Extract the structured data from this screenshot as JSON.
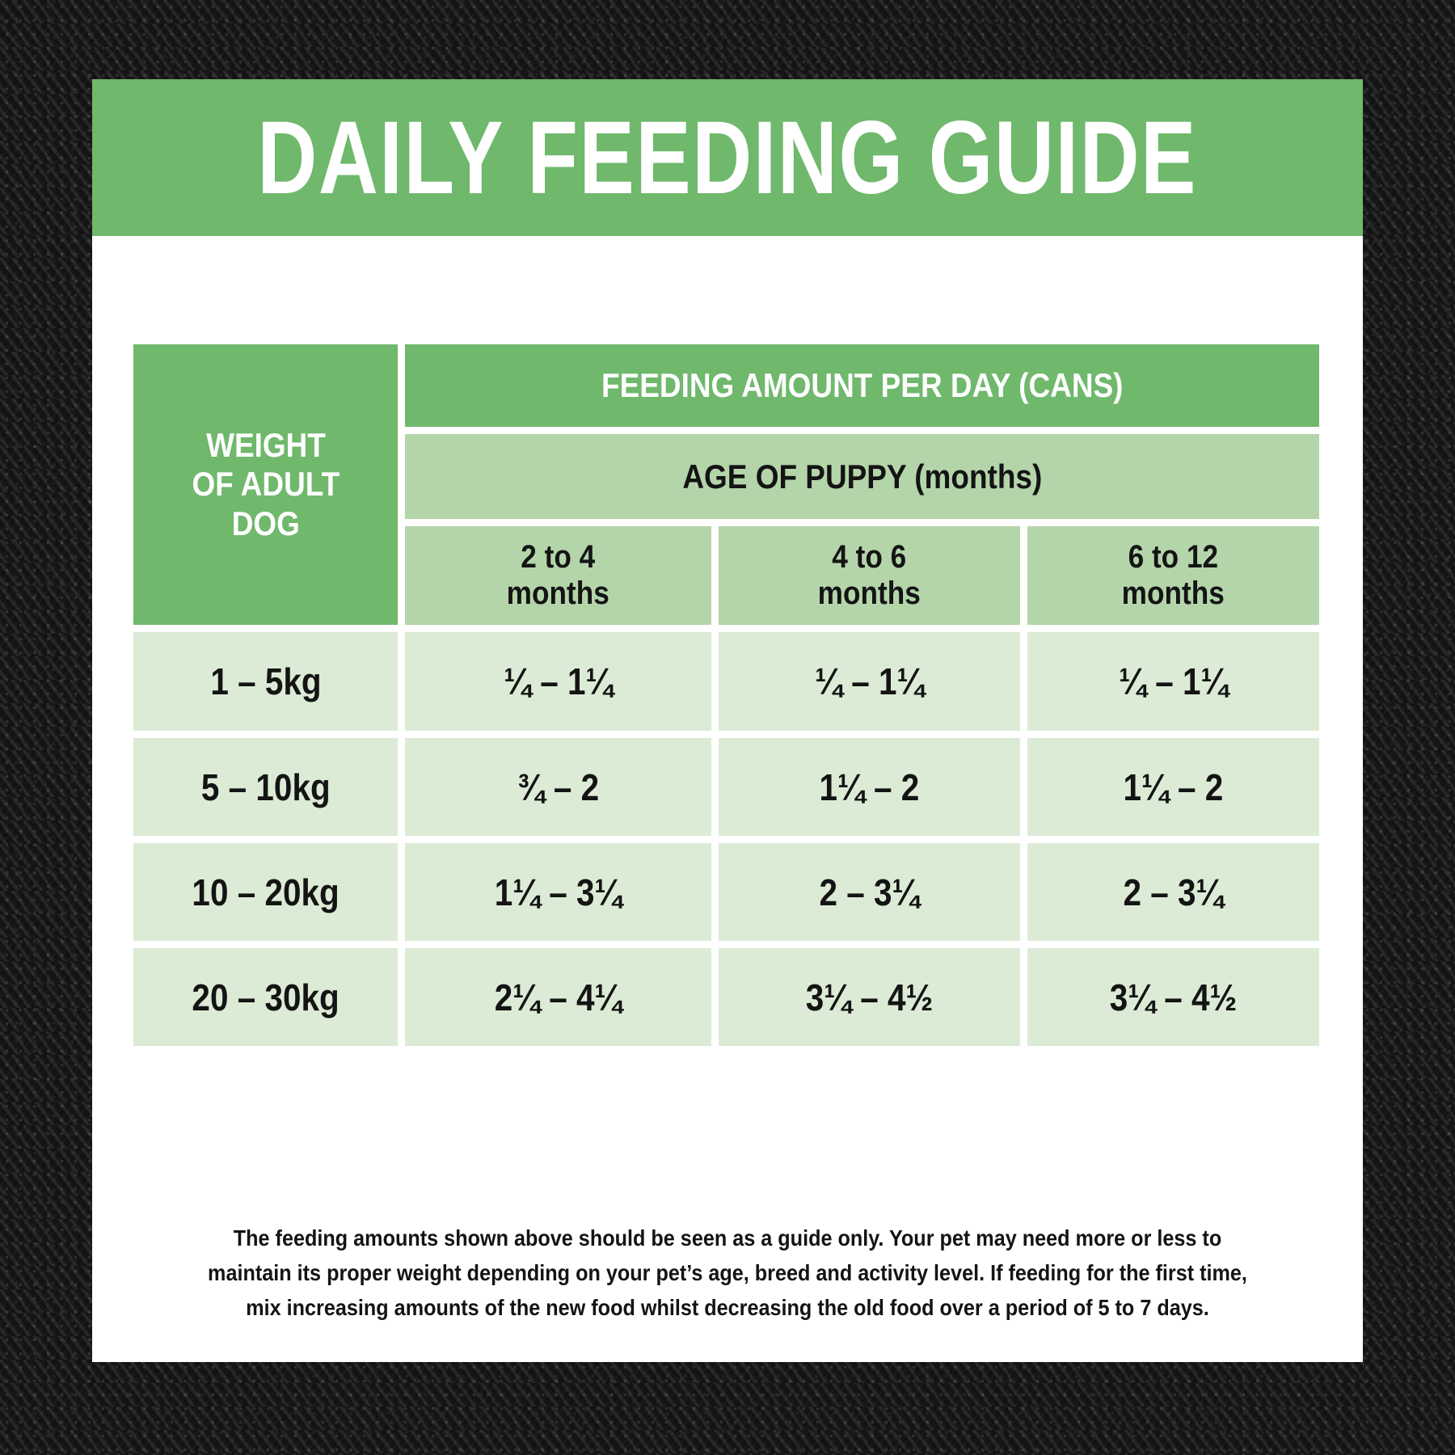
{
  "page": {
    "title_banner": "DAILY FEEDING GUIDE"
  },
  "table": {
    "corner_header_lines": [
      "WEIGHT",
      "OF ADULT",
      "DOG"
    ],
    "top_header": "FEEDING AMOUNT PER DAY (CANS)",
    "sub_header": "AGE OF PUPPY (months)",
    "column_headers": [
      [
        "2 to 4",
        "months"
      ],
      [
        "4 to 6",
        "months"
      ],
      [
        "6 to 12",
        "months"
      ]
    ],
    "rows": [
      {
        "weight": "1 – 5kg",
        "values": [
          "¼ – 1¼",
          "¼ – 1¼",
          "¼ – 1¼"
        ]
      },
      {
        "weight": "5 – 10kg",
        "values": [
          "¾ – 2",
          "1¼ – 2",
          "1¼ – 2"
        ]
      },
      {
        "weight": "10 – 20kg",
        "values": [
          "1¼ – 3¼",
          "2 – 3¼",
          "2 – 3¼"
        ]
      },
      {
        "weight": "20 – 30kg",
        "values": [
          "2¼ – 4¼",
          "3¼ – 4½",
          "3¼ – 4½"
        ]
      }
    ]
  },
  "footnote_lines": [
    "The feeding amounts shown above should be seen as a guide only. Your pet may need more or less to",
    "maintain its proper weight depending on your pet’s age, breed and activity level. If feeding for the first time,",
    "mix increasing amounts of the new food whilst decreasing the old food over a period of 5 to 7 days."
  ],
  "colors": {
    "primary_green": "#6fb86c",
    "mid_green": "#b4d5aa",
    "pale_green": "#dcebd6",
    "card_white": "#ffffff",
    "background_charcoal": "#1d1d1d",
    "text_black": "#141414",
    "text_white": "#ffffff"
  }
}
